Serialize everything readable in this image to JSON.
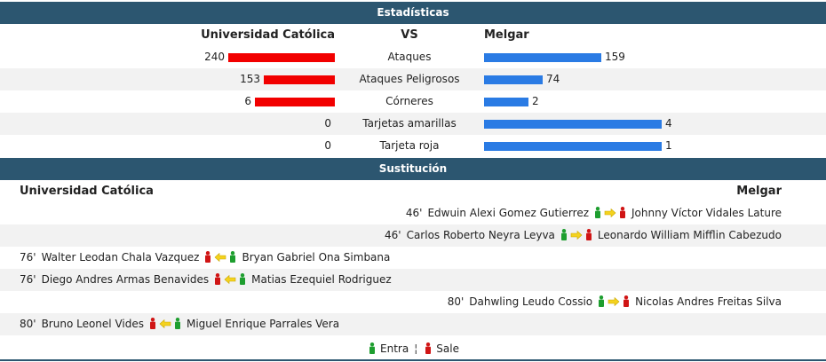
{
  "stats": {
    "title": "Estadísticas",
    "home_team": "Universidad Católica",
    "vs": "VS",
    "away_team": "Melgar",
    "rows": [
      {
        "label": "Ataques",
        "home": "240",
        "away": "159",
        "home_bar": 1.0,
        "away_bar": 0.66
      },
      {
        "label": "Ataques Peligrosos",
        "home": "153",
        "away": "74",
        "home_bar": 0.67,
        "away_bar": 0.33
      },
      {
        "label": "Córneres",
        "home": "6",
        "away": "2",
        "home_bar": 0.75,
        "away_bar": 0.25
      },
      {
        "label": "Tarjetas amarillas",
        "home": "0",
        "away": "4",
        "home_bar": 0.0,
        "away_bar": 1.0
      },
      {
        "label": "Tarjeta roja",
        "home": "0",
        "away": "1",
        "home_bar": 0.0,
        "away_bar": 1.0
      }
    ]
  },
  "subs": {
    "title": "Sustitución",
    "home_team": "Universidad Católica",
    "away_team": "Melgar",
    "rows": [
      {
        "side": "away",
        "minute": "46'",
        "player_in": "Edwuin Alexi Gomez Gutierrez",
        "player_out": "Johnny Víctor Vidales Lature"
      },
      {
        "side": "away",
        "minute": "46'",
        "player_in": "Carlos Roberto Neyra Leyva",
        "player_out": "Leonardo William Mifflin Cabezudo"
      },
      {
        "side": "home",
        "minute": "76'",
        "player_out": "Walter Leodan Chala Vazquez",
        "player_in": "Bryan Gabriel Ona Simbana"
      },
      {
        "side": "home",
        "minute": "76'",
        "player_out": "Diego Andres Armas Benavides",
        "player_in": "Matias Ezequiel Rodriguez"
      },
      {
        "side": "away",
        "minute": "80'",
        "player_in": "Dahwling Leudo Cossio",
        "player_out": "Nicolas Andres Freitas Silva"
      },
      {
        "side": "home",
        "minute": "80'",
        "player_out": "Bruno Leonel Vides",
        "player_in": "Miguel Enrique Parrales Vera"
      }
    ]
  },
  "legend": {
    "in_label": "Entra",
    "out_label": "Sale",
    "separator": "¦"
  },
  "colors": {
    "header": "#2c5670",
    "home_bar": "#f20000",
    "away_bar": "#2a7be4",
    "in_icon": "#1e9e2f",
    "out_icon": "#d01515",
    "arrow": "#f4d21e"
  }
}
